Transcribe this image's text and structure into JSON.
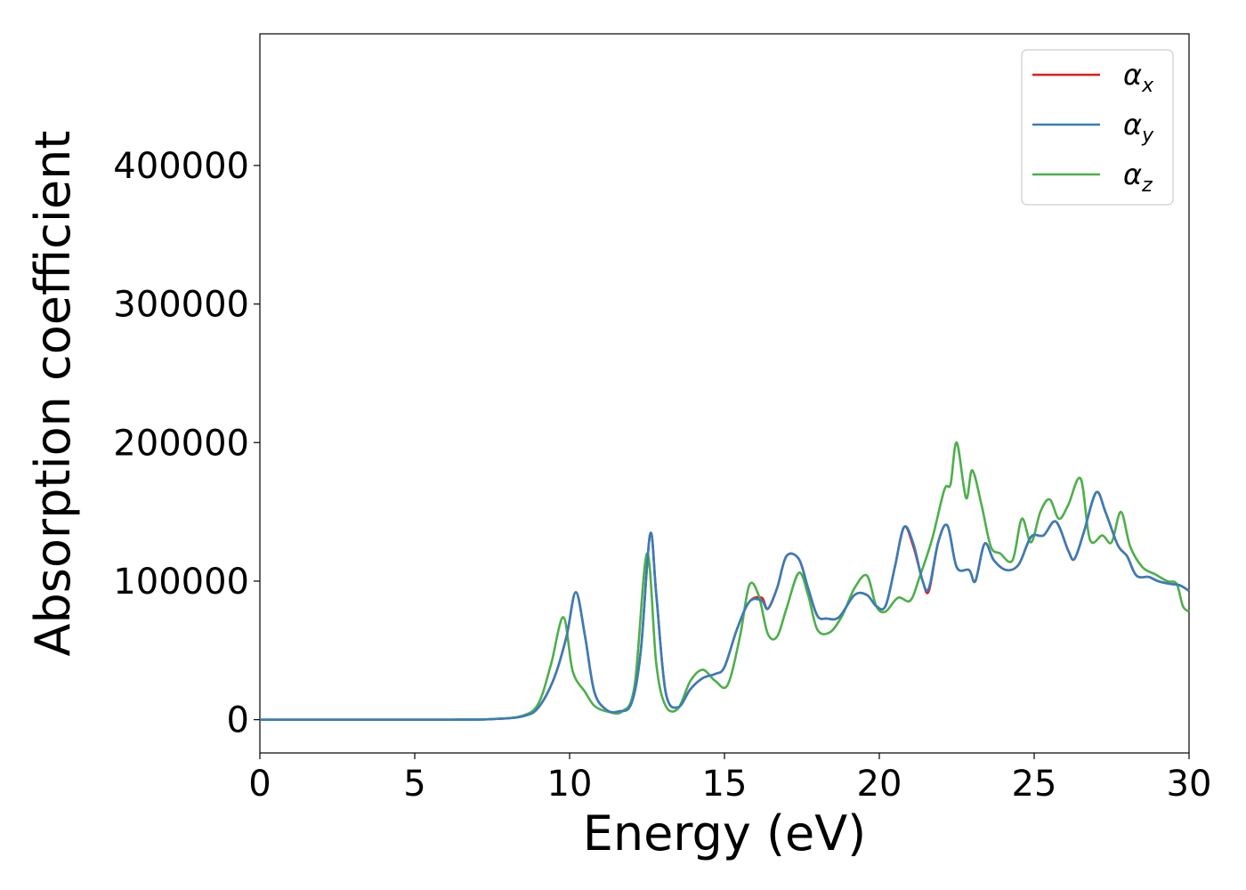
{
  "chart_data": {
    "type": "line",
    "title": "",
    "xlabel": "Energy (eV)",
    "ylabel": "Absorption coefficient",
    "xlim": [
      0,
      30
    ],
    "ylim": [
      -24000,
      495000
    ],
    "xticks": [
      "0",
      "5",
      "10",
      "15",
      "20",
      "25",
      "30"
    ],
    "yticks": [
      "0",
      "100000",
      "200000",
      "300000",
      "400000"
    ],
    "grid": false,
    "legend_position": "top-right",
    "series": [
      {
        "name": "α_x",
        "legend_main": "α",
        "legend_sub": "x",
        "color": "#e41a1c",
        "points": [
          [
            0,
            0
          ],
          [
            6,
            0
          ],
          [
            7.5,
            400
          ],
          [
            8.5,
            2500
          ],
          [
            9,
            9000
          ],
          [
            9.5,
            30000
          ],
          [
            9.9,
            60000
          ],
          [
            10.2,
            92000
          ],
          [
            10.5,
            60000
          ],
          [
            10.8,
            20000
          ],
          [
            11.2,
            7000
          ],
          [
            11.6,
            6000
          ],
          [
            12,
            12000
          ],
          [
            12.3,
            50000
          ],
          [
            12.6,
            134000
          ],
          [
            12.8,
            90000
          ],
          [
            13.1,
            20000
          ],
          [
            13.5,
            9000
          ],
          [
            13.9,
            22000
          ],
          [
            14.3,
            30000
          ],
          [
            14.7,
            33000
          ],
          [
            15,
            38000
          ],
          [
            15.4,
            65000
          ],
          [
            15.8,
            85000
          ],
          [
            16.2,
            88000
          ],
          [
            16.4,
            80000
          ],
          [
            16.7,
            95000
          ],
          [
            17,
            118000
          ],
          [
            17.4,
            116000
          ],
          [
            17.7,
            95000
          ],
          [
            18,
            75000
          ],
          [
            18.3,
            73000
          ],
          [
            18.7,
            74000
          ],
          [
            19.2,
            90000
          ],
          [
            19.6,
            90000
          ],
          [
            19.9,
            82000
          ],
          [
            20.2,
            82000
          ],
          [
            20.5,
            110000
          ],
          [
            20.8,
            139000
          ],
          [
            21.1,
            125000
          ],
          [
            21.4,
            100000
          ],
          [
            21.6,
            93000
          ],
          [
            21.9,
            128000
          ],
          [
            22.2,
            140000
          ],
          [
            22.5,
            110000
          ],
          [
            22.9,
            108000
          ],
          [
            23.1,
            100000
          ],
          [
            23.4,
            127000
          ],
          [
            23.7,
            115000
          ],
          [
            24.1,
            108000
          ],
          [
            24.5,
            112000
          ],
          [
            24.9,
            132000
          ],
          [
            25.3,
            133000
          ],
          [
            25.7,
            143000
          ],
          [
            26.1,
            122000
          ],
          [
            26.3,
            116000
          ],
          [
            26.6,
            135000
          ],
          [
            27,
            164000
          ],
          [
            27.3,
            150000
          ],
          [
            27.7,
            126000
          ],
          [
            28,
            118000
          ],
          [
            28.3,
            104000
          ],
          [
            28.7,
            103000
          ],
          [
            29,
            100000
          ],
          [
            29.4,
            98000
          ],
          [
            29.7,
            97000
          ],
          [
            30,
            93000
          ]
        ]
      },
      {
        "name": "α_y",
        "legend_main": "α",
        "legend_sub": "y",
        "color": "#377eb8",
        "points": [
          [
            0,
            0
          ],
          [
            6,
            0
          ],
          [
            7.5,
            400
          ],
          [
            8.5,
            2500
          ],
          [
            9,
            9000
          ],
          [
            9.5,
            30000
          ],
          [
            9.9,
            60000
          ],
          [
            10.2,
            92000
          ],
          [
            10.5,
            60000
          ],
          [
            10.8,
            20000
          ],
          [
            11.2,
            7000
          ],
          [
            11.6,
            6000
          ],
          [
            12,
            12000
          ],
          [
            12.3,
            50000
          ],
          [
            12.6,
            134000
          ],
          [
            12.8,
            90000
          ],
          [
            13.1,
            20000
          ],
          [
            13.5,
            9000
          ],
          [
            13.9,
            22000
          ],
          [
            14.3,
            30000
          ],
          [
            14.7,
            33000
          ],
          [
            15,
            38000
          ],
          [
            15.4,
            65000
          ],
          [
            15.8,
            85000
          ],
          [
            16.2,
            86000
          ],
          [
            16.4,
            80000
          ],
          [
            16.7,
            95000
          ],
          [
            17,
            118000
          ],
          [
            17.4,
            116000
          ],
          [
            17.7,
            95000
          ],
          [
            18,
            75000
          ],
          [
            18.3,
            73000
          ],
          [
            18.7,
            74000
          ],
          [
            19.2,
            90000
          ],
          [
            19.6,
            90000
          ],
          [
            19.9,
            82000
          ],
          [
            20.2,
            82000
          ],
          [
            20.5,
            110000
          ],
          [
            20.8,
            139000
          ],
          [
            21.1,
            127000
          ],
          [
            21.4,
            100000
          ],
          [
            21.6,
            95000
          ],
          [
            21.9,
            128000
          ],
          [
            22.2,
            140000
          ],
          [
            22.5,
            110000
          ],
          [
            22.9,
            108000
          ],
          [
            23.1,
            100000
          ],
          [
            23.4,
            127000
          ],
          [
            23.7,
            115000
          ],
          [
            24.1,
            108000
          ],
          [
            24.5,
            112000
          ],
          [
            24.9,
            132000
          ],
          [
            25.3,
            133000
          ],
          [
            25.7,
            143000
          ],
          [
            26.1,
            122000
          ],
          [
            26.3,
            116000
          ],
          [
            26.6,
            135000
          ],
          [
            27,
            164000
          ],
          [
            27.3,
            150000
          ],
          [
            27.7,
            126000
          ],
          [
            28,
            118000
          ],
          [
            28.3,
            104000
          ],
          [
            28.7,
            103000
          ],
          [
            29,
            100000
          ],
          [
            29.4,
            98000
          ],
          [
            29.7,
            97000
          ],
          [
            30,
            93000
          ]
        ]
      },
      {
        "name": "α_z",
        "legend_main": "α",
        "legend_sub": "z",
        "color": "#4daf4a",
        "points": [
          [
            0,
            0
          ],
          [
            6,
            0
          ],
          [
            7.5,
            500
          ],
          [
            8.5,
            3000
          ],
          [
            9,
            12000
          ],
          [
            9.4,
            40000
          ],
          [
            9.8,
            74000
          ],
          [
            10.1,
            35000
          ],
          [
            10.5,
            20000
          ],
          [
            10.8,
            10000
          ],
          [
            11.2,
            6000
          ],
          [
            11.7,
            6000
          ],
          [
            12.1,
            25000
          ],
          [
            12.5,
            120000
          ],
          [
            12.8,
            40000
          ],
          [
            13.1,
            10000
          ],
          [
            13.5,
            8000
          ],
          [
            13.9,
            28000
          ],
          [
            14.3,
            36000
          ],
          [
            14.7,
            28000
          ],
          [
            15.1,
            25000
          ],
          [
            15.5,
            60000
          ],
          [
            15.8,
            97000
          ],
          [
            16.1,
            90000
          ],
          [
            16.4,
            62000
          ],
          [
            16.7,
            60000
          ],
          [
            17,
            80000
          ],
          [
            17.4,
            106000
          ],
          [
            17.7,
            90000
          ],
          [
            18,
            65000
          ],
          [
            18.4,
            63000
          ],
          [
            18.8,
            75000
          ],
          [
            19.2,
            95000
          ],
          [
            19.6,
            104000
          ],
          [
            19.9,
            82000
          ],
          [
            20.2,
            78000
          ],
          [
            20.6,
            88000
          ],
          [
            21,
            86000
          ],
          [
            21.3,
            103000
          ],
          [
            21.7,
            130000
          ],
          [
            22.1,
            166000
          ],
          [
            22.3,
            170000
          ],
          [
            22.5,
            200000
          ],
          [
            22.8,
            160000
          ],
          [
            23,
            180000
          ],
          [
            23.3,
            155000
          ],
          [
            23.6,
            125000
          ],
          [
            23.9,
            120000
          ],
          [
            24.3,
            115000
          ],
          [
            24.6,
            145000
          ],
          [
            24.9,
            128000
          ],
          [
            25.2,
            150000
          ],
          [
            25.5,
            159000
          ],
          [
            25.8,
            145000
          ],
          [
            26.1,
            155000
          ],
          [
            26.5,
            174000
          ],
          [
            26.8,
            130000
          ],
          [
            27.2,
            133000
          ],
          [
            27.5,
            128000
          ],
          [
            27.8,
            150000
          ],
          [
            28.1,
            125000
          ],
          [
            28.5,
            110000
          ],
          [
            28.9,
            105000
          ],
          [
            29.3,
            100000
          ],
          [
            29.6,
            98000
          ],
          [
            29.8,
            82000
          ],
          [
            30,
            78000
          ]
        ]
      }
    ]
  }
}
